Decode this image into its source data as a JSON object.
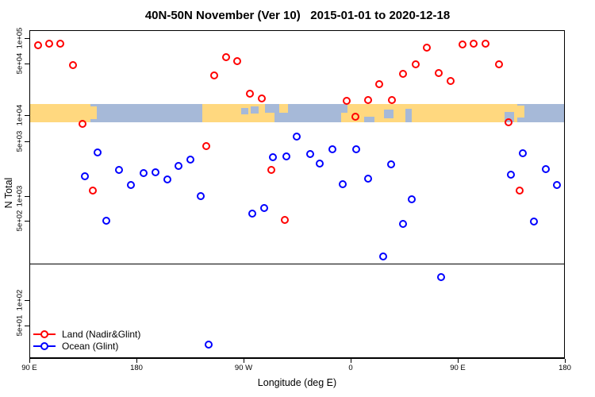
{
  "title": "40N-50N November (Ver 10)   2015-01-01 to 2020-12-18",
  "legend": {
    "items": [
      {
        "label": "Land (Nadir&Glint)",
        "color": "#FF0000"
      },
      {
        "label": "Ocean (Glint)",
        "color": "#0000FF"
      }
    ]
  },
  "colors": {
    "land_series": "#FF0000",
    "ocean_series": "#0000FF",
    "map_land": "#FFD87F",
    "map_ocean": "#A6B9D8",
    "axis": "#000000"
  },
  "chart_data": {
    "type": "scatter",
    "title": "40N-50N November (Ver 10)   2015-01-01 to 2020-12-18",
    "xlabel": "Longitude (deg E)",
    "ylabel": "N Total",
    "x_unit": "degrees east, continuous from 90E eastward across the dateline (90E-180 band shown at both ends)",
    "x_range": [
      90,
      540
    ],
    "x_ticks": [
      {
        "lon": 90,
        "label": "90 E"
      },
      {
        "lon": 180,
        "label": "180"
      },
      {
        "lon": 270,
        "label": "90 W"
      },
      {
        "lon": 360,
        "label": "0"
      },
      {
        "lon": 450,
        "label": "90 E"
      },
      {
        "lon": 540,
        "label": "180"
      }
    ],
    "y_scale": "log",
    "y_ticks": [
      {
        "value": 100000,
        "label": "1e+05"
      },
      {
        "value": 50000,
        "label": "5e+04"
      },
      {
        "value": 10000,
        "label": "1e+04"
      },
      {
        "value": 5000,
        "label": "5e+03"
      },
      {
        "value": 1000,
        "label": "1e+03"
      },
      {
        "value": 500,
        "label": "5e+02"
      },
      {
        "value": 100,
        "label": "1e+02"
      },
      {
        "value": 50,
        "label": "5e+01"
      }
    ],
    "ylim": [
      30,
      130000
    ],
    "reference_line_n": 210,
    "grid": false,
    "legend_position": "bottom-left",
    "map_band": {
      "top_n": 14000,
      "bottom_n": 8200,
      "description": "world map strip of the 40N-50N latitude band drawn across the plot",
      "segments": [
        {
          "lon1": 90,
          "lon2": 141,
          "top": 0,
          "bot": 1,
          "type": "land"
        },
        {
          "lon1": 141,
          "lon2": 146.5,
          "top": 0.12,
          "bot": 0.8,
          "type": "land"
        },
        {
          "lon1": 235,
          "lon2": 288,
          "top": 0,
          "bot": 1,
          "type": "land"
        },
        {
          "lon1": 288,
          "lon2": 296,
          "top": 0.45,
          "bot": 1,
          "type": "land"
        },
        {
          "lon1": 300,
          "lon2": 307.5,
          "top": 0,
          "bot": 0.45,
          "type": "land"
        },
        {
          "lon1": 352,
          "lon2": 500,
          "top": 0,
          "bot": 1,
          "type": "land"
        },
        {
          "lon1": 500,
          "lon2": 506,
          "top": 0.05,
          "bot": 0.7,
          "type": "land"
        },
        {
          "lon1": 352,
          "lon2": 357,
          "top": 0,
          "bot": 0.45,
          "type": "water"
        },
        {
          "lon1": 371,
          "lon2": 380,
          "top": 0.68,
          "bot": 1,
          "type": "water"
        },
        {
          "lon1": 388,
          "lon2": 396,
          "top": 0.3,
          "bot": 0.78,
          "type": "water"
        },
        {
          "lon1": 406,
          "lon2": 411,
          "top": 0.25,
          "bot": 1,
          "type": "water"
        },
        {
          "lon1": 268,
          "lon2": 274,
          "top": 0.18,
          "bot": 0.55,
          "type": "water"
        },
        {
          "lon1": 276,
          "lon2": 282.5,
          "top": 0.12,
          "bot": 0.5,
          "type": "water"
        },
        {
          "lon1": 293,
          "lon2": 299,
          "top": 0,
          "bot": 0.3,
          "type": "water"
        },
        {
          "lon1": 489,
          "lon2": 497,
          "top": 0.4,
          "bot": 1,
          "type": "water"
        }
      ]
    },
    "series": [
      {
        "name": "Land (Nadir&Glint)",
        "color": "#FF0000",
        "points": [
          [
            97.3,
            82000
          ],
          [
            106.7,
            86000
          ],
          [
            116,
            86000
          ],
          [
            126.7,
            48000
          ],
          [
            134.7,
            7900
          ],
          [
            143.3,
            1180
          ],
          [
            238.7,
            4350
          ],
          [
            245.3,
            34500
          ],
          [
            255.3,
            59000
          ],
          [
            264.7,
            53000
          ],
          [
            275.3,
            19500
          ],
          [
            285.3,
            16800
          ],
          [
            293.3,
            2160
          ],
          [
            304.7,
            510
          ],
          [
            356.7,
            15600
          ],
          [
            364,
            9600
          ],
          [
            374.7,
            16000
          ],
          [
            384,
            26000
          ],
          [
            394.7,
            16000
          ],
          [
            404,
            36000
          ],
          [
            414.7,
            49000
          ],
          [
            424,
            77000
          ],
          [
            434,
            37000
          ],
          [
            444,
            29000
          ],
          [
            454,
            84000
          ],
          [
            463.3,
            86000
          ],
          [
            473.3,
            86000
          ],
          [
            484.7,
            49000
          ],
          [
            492.7,
            8300
          ],
          [
            502,
            1180
          ]
        ]
      },
      {
        "name": "Ocean (Glint)",
        "color": "#0000FF",
        "points": [
          [
            136.7,
            1790
          ],
          [
            147.3,
            3610
          ],
          [
            154.7,
            500
          ],
          [
            165.3,
            2160
          ],
          [
            175.3,
            1390
          ],
          [
            186,
            1970
          ],
          [
            196,
            2010
          ],
          [
            206,
            1630
          ],
          [
            215.3,
            2430
          ],
          [
            225.3,
            2920
          ],
          [
            234,
            1000
          ],
          [
            240.7,
            30
          ],
          [
            277.3,
            610
          ],
          [
            287.3,
            715
          ],
          [
            294.7,
            3130
          ],
          [
            306,
            3210
          ],
          [
            314.7,
            5670
          ],
          [
            326,
            3440
          ],
          [
            334,
            2600
          ],
          [
            344.7,
            3960
          ],
          [
            353.3,
            1420
          ],
          [
            364.7,
            3960
          ],
          [
            374.7,
            1670
          ],
          [
            387.3,
            242
          ],
          [
            394,
            2540
          ],
          [
            404,
            469
          ],
          [
            411.3,
            914
          ],
          [
            436,
            159
          ],
          [
            494.7,
            1880
          ],
          [
            504.7,
            3520
          ],
          [
            514,
            492
          ],
          [
            524,
            2190
          ],
          [
            533.3,
            1390
          ]
        ]
      }
    ]
  }
}
